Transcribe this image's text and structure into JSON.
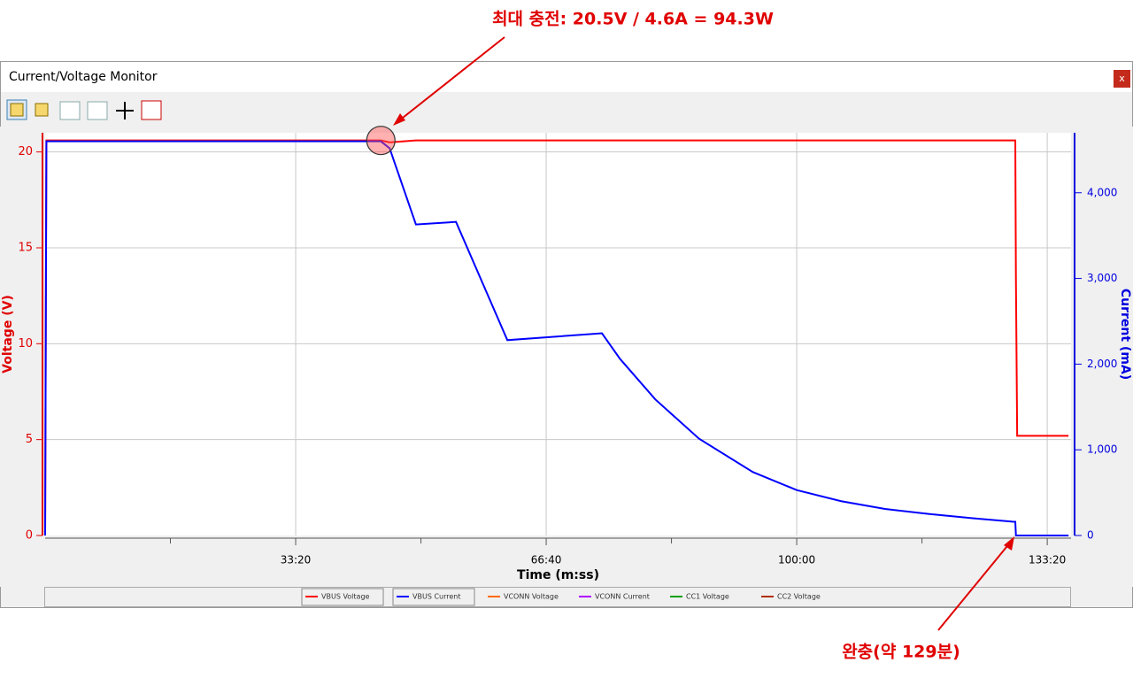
{
  "window": {
    "title": "Current/Voltage Monitor",
    "close": "x"
  },
  "annotations": {
    "top": "최대 충전: 20.5V / 4.6A = 94.3W",
    "bottom": "완충(약 129분)"
  },
  "chart_data": {
    "type": "line",
    "x": [
      0,
      10,
      2680,
      2750,
      2960,
      3280,
      3690,
      4445,
      4590,
      4870,
      5220,
      5650,
      6000,
      6355,
      6705,
      7060,
      7415,
      7730,
      7745,
      7750,
      7760,
      8170
    ],
    "xlabel": "Time (m:ss)",
    "ylabel": "Voltage (V)",
    "y2label": "Current (mA)",
    "xlim": [
      0,
      8190
    ],
    "xticks": [
      {
        "value": 2000,
        "label": "33:20"
      },
      {
        "value": 4000,
        "label": "66:40"
      },
      {
        "value": 6000,
        "label": "100:00"
      },
      {
        "value": 8000,
        "label": "133:20"
      }
    ],
    "xminorticks": [
      1000,
      3000,
      5000,
      7000
    ],
    "ylim": [
      0,
      21
    ],
    "yticks": [
      0,
      5,
      10,
      15,
      20
    ],
    "ycolor": "#e00000",
    "y2lim": [
      0,
      4700
    ],
    "y2ticks": [
      0,
      {
        "value": 1000,
        "label": "1,000"
      },
      {
        "value": 2000,
        "label": "2,000"
      },
      {
        "value": 3000,
        "label": "3,000"
      },
      {
        "value": 4000,
        "label": "4,000"
      }
    ],
    "y2color": "#0000e0",
    "grid": true,
    "series": [
      {
        "name": "VBUS Voltage",
        "color": "#ff0000",
        "values": [
          0,
          20.6,
          20.6,
          20.5,
          20.6,
          20.6,
          20.6,
          20.6,
          20.6,
          20.6,
          20.6,
          20.6,
          20.6,
          20.6,
          20.6,
          20.6,
          20.6,
          20.6,
          20.6,
          13.4,
          5.2,
          5.2
        ]
      },
      {
        "name": "VBUS Current",
        "color": "#0000ff",
        "axis": "y2",
        "values": [
          0,
          4600,
          4600,
          4520,
          3630,
          3660,
          2280,
          2360,
          2060,
          1590,
          1130,
          740,
          530,
          400,
          310,
          250,
          200,
          160,
          160,
          0,
          0,
          0
        ]
      },
      {
        "name": "VCONN Voltage",
        "color": "#ff6a00",
        "values": [
          null,
          null,
          null,
          null,
          null,
          null,
          null,
          null,
          null,
          null,
          null,
          null,
          null,
          null,
          null,
          null,
          null,
          null,
          null,
          null,
          null,
          null
        ]
      },
      {
        "name": "VCONN Current",
        "color": "#b000ff",
        "values": [
          null,
          null,
          null,
          null,
          null,
          null,
          null,
          null,
          null,
          null,
          null,
          null,
          null,
          null,
          null,
          null,
          null,
          null,
          null,
          null,
          null,
          null
        ]
      },
      {
        "name": "CC1 Voltage",
        "color": "#00a000",
        "values": [
          null,
          null,
          null,
          null,
          null,
          null,
          null,
          null,
          null,
          null,
          null,
          null,
          null,
          null,
          null,
          null,
          null,
          null,
          null,
          null,
          null,
          null
        ]
      },
      {
        "name": "CC2 Voltage",
        "color": "#b03000",
        "values": [
          null,
          null,
          null,
          null,
          null,
          null,
          null,
          null,
          null,
          null,
          null,
          null,
          null,
          null,
          null,
          null,
          null,
          null,
          null,
          null,
          null,
          null
        ]
      }
    ]
  }
}
